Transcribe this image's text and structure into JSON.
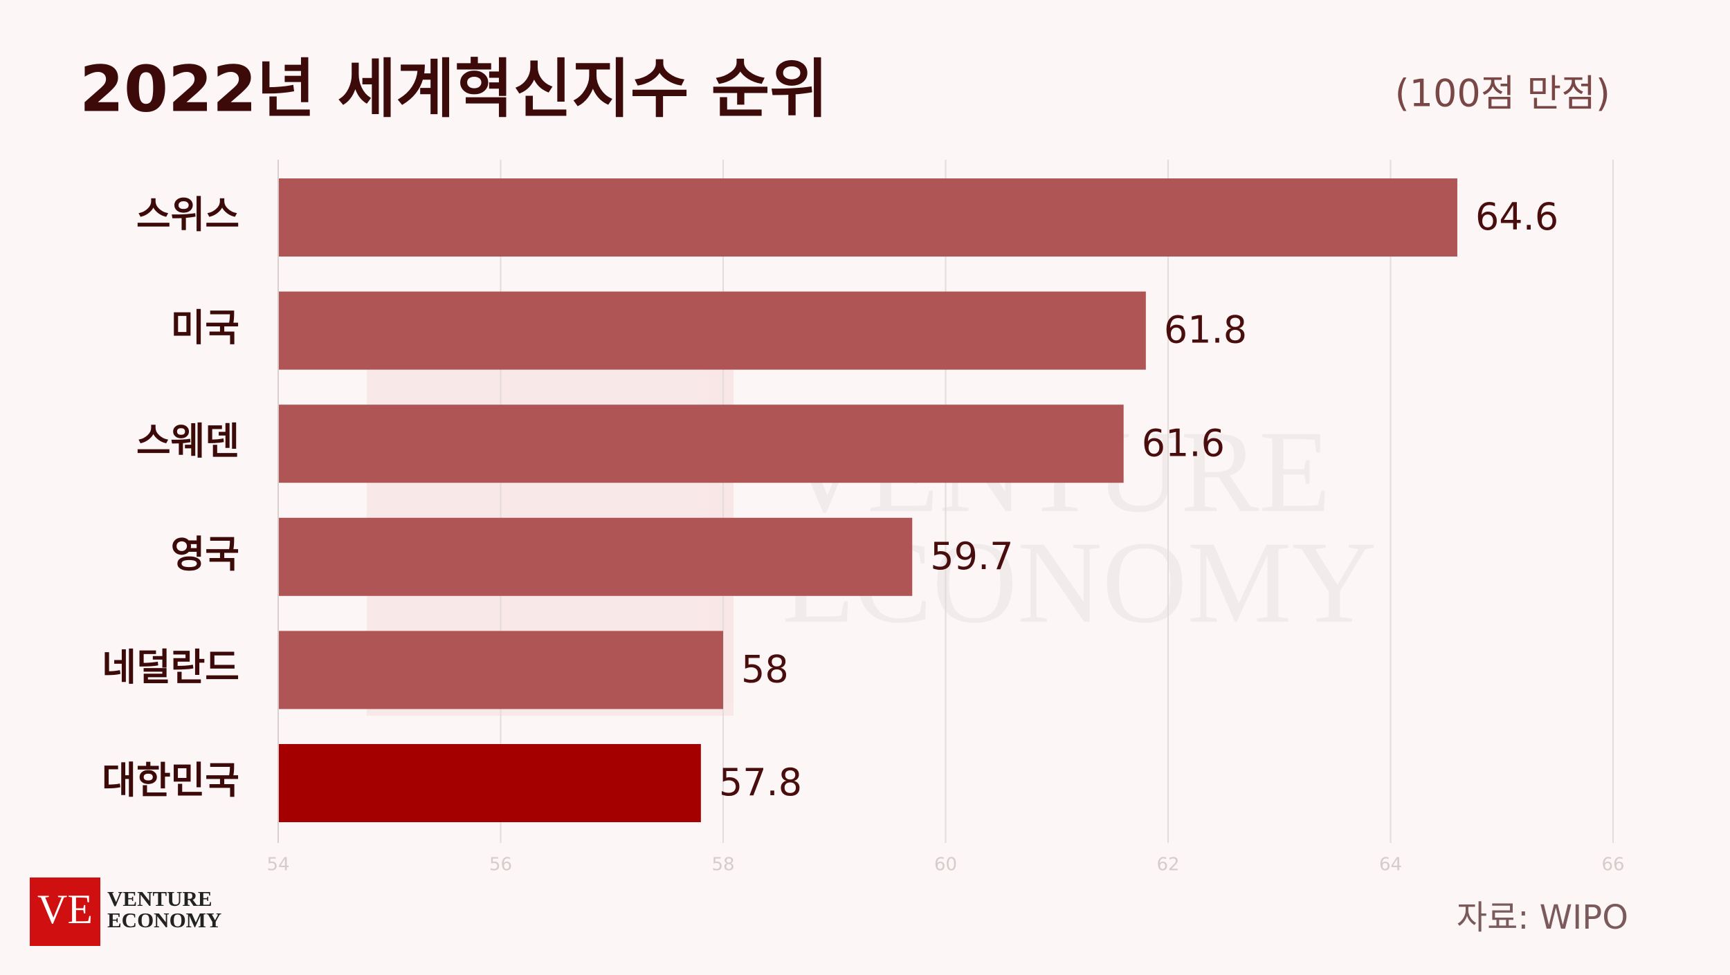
{
  "chart_data": {
    "type": "bar",
    "orientation": "horizontal",
    "title": "2022년 세계혁신지수 순위",
    "subtitle": "(100점 만점)",
    "source": "자료: WIPO",
    "categories": [
      "스위스",
      "미국",
      "스웨덴",
      "영국",
      "네덜란드",
      "대한민국"
    ],
    "values": [
      64.6,
      61.8,
      61.6,
      59.7,
      58,
      57.8
    ],
    "colors": [
      "#b05555",
      "#b05555",
      "#b05555",
      "#b05555",
      "#b05555",
      "#a50000"
    ],
    "xlim": [
      54,
      66
    ],
    "xticks": [
      54,
      56,
      58,
      60,
      62,
      64,
      66
    ],
    "grid": true
  },
  "logo": {
    "mark": "VE",
    "line1": "VENTURE",
    "line2": "ECONOMY"
  }
}
